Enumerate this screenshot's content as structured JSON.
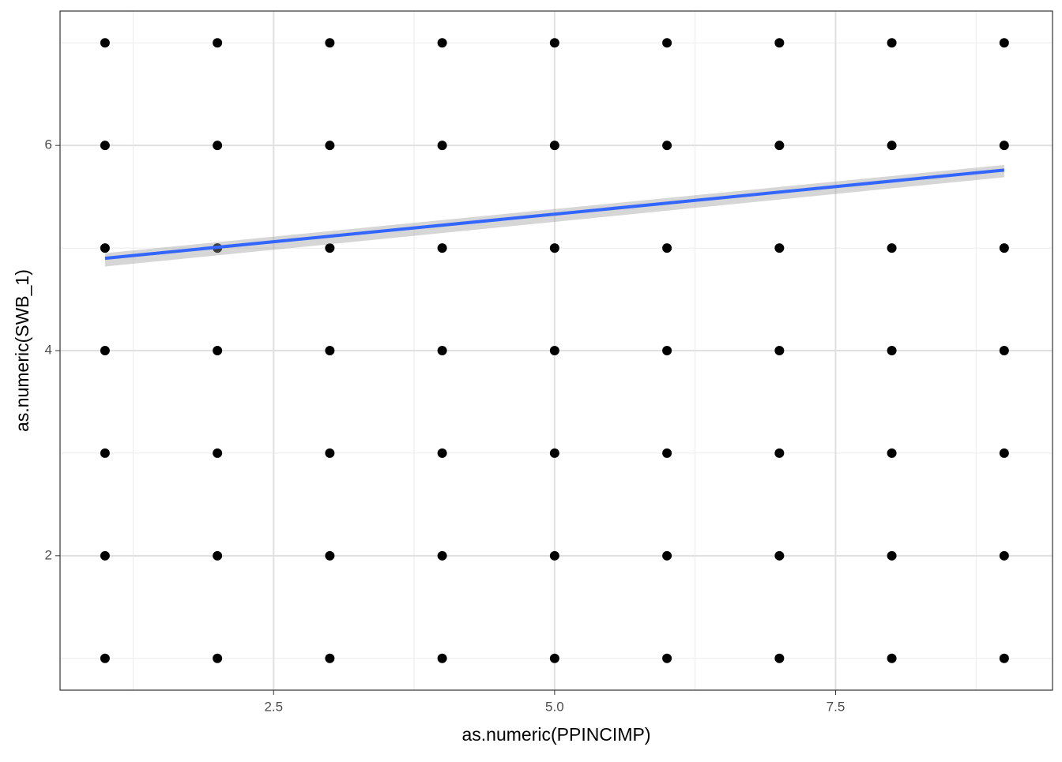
{
  "chart_data": {
    "type": "scatter",
    "x_label": "as.numeric(PPINCIMP)",
    "y_label": "as.numeric(SWB_1)",
    "xlim": [
      0.6,
      9.43
    ],
    "ylim": [
      0.69,
      7.31
    ],
    "xticks": [
      2.5,
      {
        "value": 5,
        "label": "5.0"
      },
      7.5
    ],
    "yticks": [
      2,
      4,
      6
    ],
    "xminor": [
      1.25,
      3.75,
      6.25,
      8.75
    ],
    "yminor": [
      1,
      3,
      5,
      7
    ],
    "grid": true,
    "series": [
      {
        "color": "#000000",
        "x": [
          1,
          1,
          1,
          1,
          1,
          1,
          1,
          2,
          2,
          2,
          2,
          2,
          2,
          2,
          3,
          3,
          3,
          3,
          3,
          3,
          3,
          4,
          4,
          4,
          4,
          4,
          4,
          4,
          5,
          5,
          5,
          5,
          5,
          5,
          5,
          6,
          6,
          6,
          6,
          6,
          6,
          6,
          7,
          7,
          7,
          7,
          7,
          7,
          7,
          8,
          8,
          8,
          8,
          8,
          8,
          8,
          9,
          9,
          9,
          9,
          9,
          9,
          9
        ],
        "values": [
          1,
          2,
          3,
          4,
          5,
          6,
          7,
          1,
          2,
          3,
          4,
          5,
          6,
          7,
          1,
          2,
          3,
          4,
          5,
          6,
          7,
          1,
          2,
          3,
          4,
          5,
          6,
          7,
          1,
          2,
          3,
          4,
          5,
          6,
          7,
          1,
          2,
          3,
          4,
          5,
          6,
          7,
          1,
          2,
          3,
          4,
          5,
          6,
          7,
          1,
          2,
          3,
          4,
          5,
          6,
          7,
          1,
          2,
          3,
          4,
          5,
          6,
          7
        ]
      }
    ],
    "fit": {
      "color": "#3366ff",
      "band_color": "#999999",
      "x": [
        1,
        9
      ],
      "values": [
        4.9,
        5.76
      ],
      "ymin": [
        4.82,
        5.69
      ],
      "ymax": [
        4.95,
        5.81
      ]
    }
  }
}
